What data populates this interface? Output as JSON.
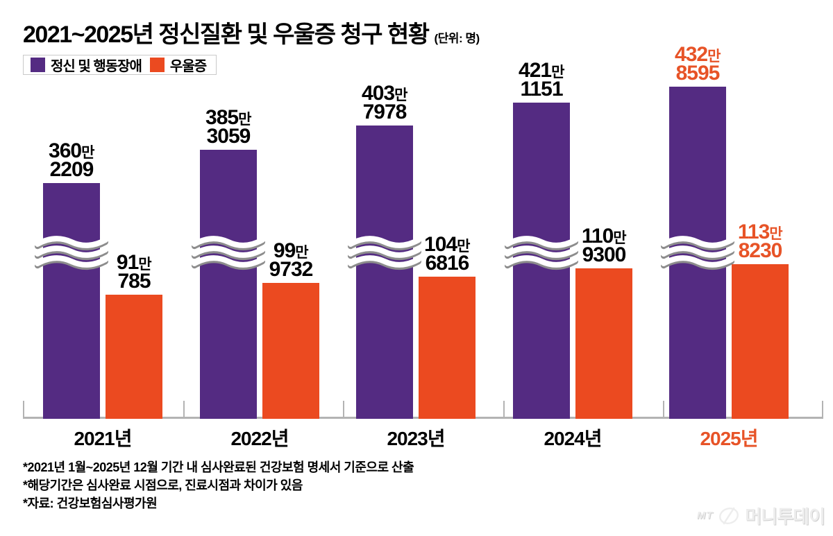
{
  "title": "2021~2025년 정신질환 및 우울증 청구 현황",
  "title_unit": "(단위: 명)",
  "footnotes": [
    "*2021년 1월~2025년 12월 기간 내 심사완료된 건강보험 명세서 기준으로 산출",
    "*해당기간은 심사완료 시점으로, 진료시점과 차이가 있음",
    "*자료: 건강보험심사평가원"
  ],
  "logo": {
    "mt": "MT",
    "name": "머니투데이"
  },
  "chart_data": {
    "type": "bar",
    "title": "2021~2025년 정신질환 및 우울증 청구 현황",
    "unit": "명",
    "categories": [
      "2021년",
      "2022년",
      "2023년",
      "2024년",
      "2025년"
    ],
    "series": [
      {
        "name": "정신 및 행동장애",
        "color": "#542B82",
        "values": [
          3602209,
          3853059,
          4037978,
          4211151,
          4328595
        ]
      },
      {
        "name": "우울증",
        "color": "#EB4A20",
        "values": [
          910785,
          999732,
          1046816,
          1109300,
          1138230
        ]
      }
    ],
    "value_label_format": "{만}만 {나머지}",
    "broken_axis_series": "정신 및 행동장애",
    "highlight_category": "2025년",
    "highlight_text_color": "#E75327",
    "legend_position": "top-left",
    "grid": false,
    "axis_line_color": "#b3b3b3"
  }
}
